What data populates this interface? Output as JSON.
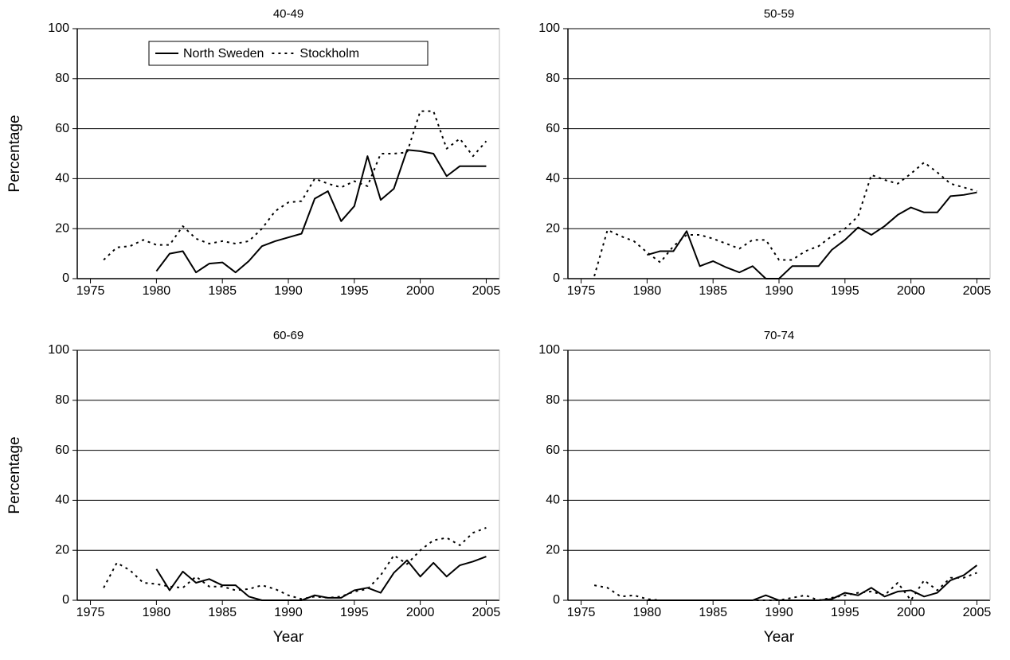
{
  "chart_data": [
    {
      "type": "line",
      "title": "40-49",
      "ylabel": "Percentage",
      "x": [
        1976,
        1977,
        1978,
        1979,
        1980,
        1981,
        1982,
        1983,
        1984,
        1985,
        1986,
        1987,
        1988,
        1989,
        1990,
        1991,
        1992,
        1993,
        1994,
        1995,
        1996,
        1997,
        1998,
        1999,
        2000,
        2001,
        2002,
        2003,
        2004,
        2005
      ],
      "series": [
        {
          "name": "North Sweden",
          "color": "#000000",
          "dash": "solid",
          "values": [
            null,
            null,
            null,
            null,
            3,
            10,
            11,
            2.5,
            6,
            6.5,
            2.5,
            7,
            13,
            15,
            16.5,
            18,
            32,
            35,
            23,
            29,
            49,
            31.5,
            36,
            51.5,
            51,
            50,
            41,
            45,
            45,
            45
          ]
        },
        {
          "name": "Stockholm",
          "color": "#000000",
          "dash": "dotted",
          "values": [
            7.5,
            12.5,
            13,
            15.5,
            13.5,
            13.5,
            21,
            16,
            14,
            15,
            14,
            15,
            20,
            27,
            30.5,
            31,
            40,
            38,
            36.5,
            39,
            37,
            50,
            50,
            50.5,
            67,
            67,
            52,
            56,
            49,
            55
          ]
        }
      ],
      "xlim": [
        1974,
        2006
      ],
      "xticks": [
        1975,
        1980,
        1985,
        1990,
        1995,
        2000,
        2005
      ],
      "ylim": [
        0,
        100
      ],
      "yticks": [
        0,
        20,
        40,
        60,
        80,
        100
      ],
      "grid": true,
      "legend": "upper center"
    },
    {
      "type": "line",
      "title": "50-59",
      "x": [
        1976,
        1977,
        1978,
        1979,
        1980,
        1981,
        1982,
        1983,
        1984,
        1985,
        1986,
        1987,
        1988,
        1989,
        1990,
        1991,
        1992,
        1993,
        1994,
        1995,
        1996,
        1997,
        1998,
        1999,
        2000,
        2001,
        2002,
        2003,
        2004,
        2005
      ],
      "series": [
        {
          "color": "#000000",
          "dash": "solid",
          "values": [
            null,
            null,
            null,
            null,
            9.5,
            11,
            11,
            19,
            5,
            7,
            4.5,
            2.5,
            5,
            0,
            0,
            5,
            5,
            5,
            11.5,
            15.5,
            20.5,
            17.5,
            21,
            25.5,
            28.5,
            26.5,
            26.5,
            33,
            33.5,
            34.5
          ]
        },
        {
          "color": "#000000",
          "dash": "dotted",
          "values": [
            1,
            19.5,
            17,
            15,
            10.5,
            6.5,
            13,
            17.5,
            17.5,
            16,
            14,
            12,
            15.5,
            15.5,
            7.5,
            7.5,
            11,
            13,
            17,
            20,
            25,
            41.5,
            39.5,
            38,
            42,
            46.5,
            42.5,
            38,
            36.5,
            35
          ]
        }
      ],
      "xlim": [
        1974,
        2006
      ],
      "xticks": [
        1975,
        1980,
        1985,
        1990,
        1995,
        2000,
        2005
      ],
      "ylim": [
        0,
        100
      ],
      "yticks": [
        0,
        20,
        40,
        60,
        80,
        100
      ],
      "grid": true
    },
    {
      "type": "line",
      "title": "60-69",
      "ylabel": "Percentage",
      "xlabel": "Year",
      "x": [
        1976,
        1977,
        1978,
        1979,
        1980,
        1981,
        1982,
        1983,
        1984,
        1985,
        1986,
        1987,
        1988,
        1989,
        1990,
        1991,
        1992,
        1993,
        1994,
        1995,
        1996,
        1997,
        1998,
        1999,
        2000,
        2001,
        2002,
        2003,
        2004,
        2005
      ],
      "series": [
        {
          "color": "#000000",
          "dash": "solid",
          "values": [
            null,
            null,
            null,
            null,
            12.5,
            4,
            11.5,
            7,
            8.5,
            6,
            6,
            1.5,
            0,
            0,
            0,
            0,
            2,
            1,
            1,
            4,
            5,
            3,
            11,
            16,
            9.5,
            15,
            9.5,
            14,
            15.5,
            17.5
          ]
        },
        {
          "color": "#000000",
          "dash": "dotted",
          "values": [
            5,
            15,
            12,
            7,
            6.5,
            5.5,
            5,
            9.5,
            5.5,
            5.5,
            4,
            4.5,
            6,
            4.5,
            2,
            0.5,
            1.5,
            1,
            1.5,
            3.5,
            4.5,
            10,
            18,
            14.5,
            20,
            24,
            25,
            22,
            27,
            29
          ]
        }
      ],
      "xlim": [
        1974,
        2006
      ],
      "xticks": [
        1975,
        1980,
        1985,
        1990,
        1995,
        2000,
        2005
      ],
      "ylim": [
        0,
        100
      ],
      "yticks": [
        0,
        20,
        40,
        60,
        80,
        100
      ],
      "grid": true
    },
    {
      "type": "line",
      "title": "70-74",
      "xlabel": "Year",
      "x": [
        1976,
        1977,
        1978,
        1979,
        1980,
        1981,
        1982,
        1983,
        1984,
        1985,
        1986,
        1987,
        1988,
        1989,
        1990,
        1991,
        1992,
        1993,
        1994,
        1995,
        1996,
        1997,
        1998,
        1999,
        2000,
        2001,
        2002,
        2003,
        2004,
        2005
      ],
      "series": [
        {
          "color": "#000000",
          "dash": "solid",
          "values": [
            null,
            null,
            null,
            null,
            0,
            0,
            0,
            0,
            0,
            0,
            0,
            0,
            0,
            2,
            0,
            0,
            0,
            0,
            0.5,
            3,
            2,
            5,
            1.5,
            3.5,
            4,
            1.5,
            3,
            8,
            10,
            14
          ]
        },
        {
          "color": "#000000",
          "dash": "dotted",
          "values": [
            6,
            5,
            1.5,
            2,
            0.5,
            0,
            0,
            0,
            0,
            0,
            0,
            0,
            0,
            0,
            0,
            1,
            2,
            0,
            1,
            2,
            3,
            3.5,
            2,
            7,
            0,
            8,
            4,
            9,
            9,
            11
          ]
        }
      ],
      "xlim": [
        1974,
        2006
      ],
      "xticks": [
        1975,
        1980,
        1985,
        1990,
        1995,
        2000,
        2005
      ],
      "ylim": [
        0,
        100
      ],
      "yticks": [
        0,
        20,
        40,
        60,
        80,
        100
      ],
      "grid": true
    }
  ]
}
